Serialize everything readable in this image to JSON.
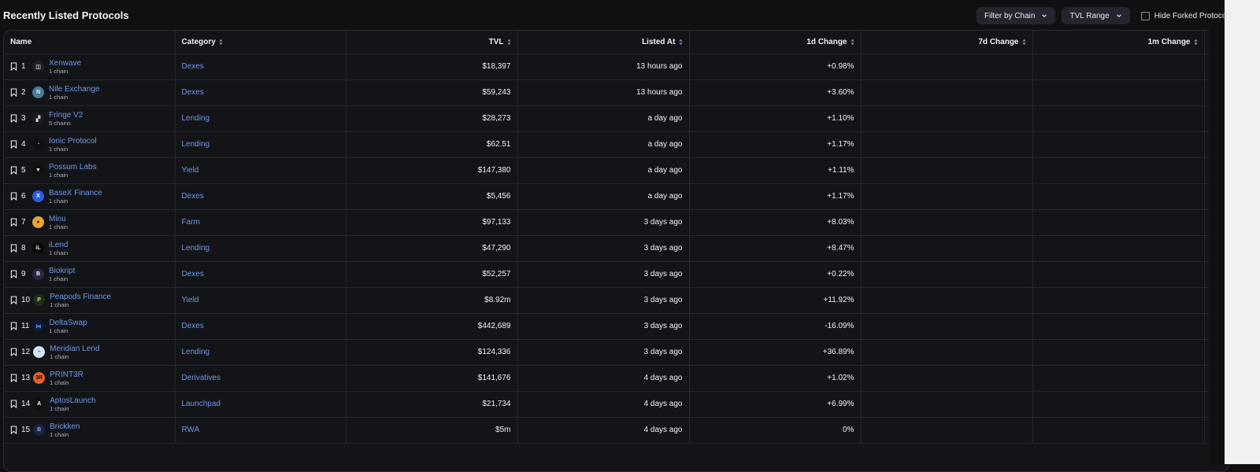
{
  "page": {
    "title": "Recently Listed Protocols"
  },
  "controls": {
    "filter_chain": "Filter by Chain",
    "tvl_range": "TVL Range",
    "hide_forked": "Hide Forked Protocols"
  },
  "columns": [
    "Name",
    "Category",
    "TVL",
    "Listed At",
    "1d Change",
    "7d Change",
    "1m Change"
  ],
  "rows": [
    {
      "rank": "1",
      "name": "Xenwave",
      "chains": "1 chain",
      "category": "Dexes",
      "tvl": "$18,397",
      "listed": "13 hours ago",
      "d1": "+0.98%",
      "d7": "",
      "m1": "",
      "logo_bg": "#1d1f24",
      "logo_fg": "#cfd2d8",
      "logo_text": "◫"
    },
    {
      "rank": "2",
      "name": "Nile Exchange",
      "chains": "1 chain",
      "category": "Dexes",
      "tvl": "$59,243",
      "listed": "13 hours ago",
      "d1": "+3.60%",
      "d7": "",
      "m1": "",
      "logo_bg": "#4a7b9a",
      "logo_fg": "#e6f0f7",
      "logo_text": "N"
    },
    {
      "rank": "3",
      "name": "Fringe V2",
      "chains": "5 chains",
      "category": "Lending",
      "tvl": "$28,273",
      "listed": "a day ago",
      "d1": "+1.10%",
      "d7": "",
      "m1": "",
      "logo_bg": "#1a1b1f",
      "logo_fg": "#cfd2d8",
      "logo_text": "▞"
    },
    {
      "rank": "4",
      "name": "Ionic Protocol",
      "chains": "1 chain",
      "category": "Lending",
      "tvl": "$62.51",
      "listed": "a day ago",
      "d1": "+1.17%",
      "d7": "",
      "m1": "",
      "logo_bg": "#0f1012",
      "logo_fg": "#6be37a",
      "logo_text": "◔"
    },
    {
      "rank": "5",
      "name": "Possum Labs",
      "chains": "1 chain",
      "category": "Yield",
      "tvl": "$147,380",
      "listed": "a day ago",
      "d1": "+1.11%",
      "d7": "",
      "m1": "",
      "logo_bg": "#0f1012",
      "logo_fg": "#e6e6e6",
      "logo_text": "▼"
    },
    {
      "rank": "6",
      "name": "BaseX Finance",
      "chains": "1 chain",
      "category": "Dexes",
      "tvl": "$5,456",
      "listed": "a day ago",
      "d1": "+1.17%",
      "d7": "",
      "m1": "",
      "logo_bg": "#2f5ce0",
      "logo_fg": "#ffffff",
      "logo_text": "X"
    },
    {
      "rank": "7",
      "name": "Minu",
      "chains": "1 chain",
      "category": "Farm",
      "tvl": "$97,133",
      "listed": "3 days ago",
      "d1": "+8.03%",
      "d7": "",
      "m1": "",
      "logo_bg": "#e8a53a",
      "logo_fg": "#4a2a0a",
      "logo_text": "●"
    },
    {
      "rank": "8",
      "name": "iLend",
      "chains": "1 chain",
      "category": "Lending",
      "tvl": "$47,290",
      "listed": "3 days ago",
      "d1": "+8.47%",
      "d7": "",
      "m1": "",
      "logo_bg": "#0a0a0a",
      "logo_fg": "#e6e6e6",
      "logo_text": "iL"
    },
    {
      "rank": "9",
      "name": "Biokript",
      "chains": "1 chain",
      "category": "Dexes",
      "tvl": "$52,257",
      "listed": "3 days ago",
      "d1": "+0.22%",
      "d7": "",
      "m1": "",
      "logo_bg": "#2a2540",
      "logo_fg": "#ffffff",
      "logo_text": "B"
    },
    {
      "rank": "10",
      "name": "Peapods Finance",
      "chains": "1 chain",
      "category": "Yield",
      "tvl": "$8.92m",
      "listed": "3 days ago",
      "d1": "+11.92%",
      "d7": "",
      "m1": "",
      "logo_bg": "#1f2a1a",
      "logo_fg": "#b8f04a",
      "logo_text": "P"
    },
    {
      "rank": "11",
      "name": "DeltaSwap",
      "chains": "1 chain",
      "category": "Dexes",
      "tvl": "$442,689",
      "listed": "3 days ago",
      "d1": "-16.09%",
      "d7": "",
      "m1": "",
      "logo_bg": "#0e1a33",
      "logo_fg": "#5a8cff",
      "logo_text": "⋈"
    },
    {
      "rank": "12",
      "name": "Meridian Lend",
      "chains": "1 chain",
      "category": "Lending",
      "tvl": "$124,336",
      "listed": "3 days ago",
      "d1": "+36.89%",
      "d7": "",
      "m1": "",
      "logo_bg": "#cfe6f2",
      "logo_fg": "#1d5f86",
      "logo_text": "~"
    },
    {
      "rank": "13",
      "name": "PRINT3R",
      "chains": "1 chain",
      "category": "Derivatives",
      "tvl": "$141,676",
      "listed": "4 days ago",
      "d1": "+1.02%",
      "d7": "",
      "m1": "",
      "logo_bg": "#e0622a",
      "logo_fg": "#1a0c05",
      "logo_text": "3R"
    },
    {
      "rank": "14",
      "name": "AptosLaunch",
      "chains": "1 chain",
      "category": "Launchpad",
      "tvl": "$21,734",
      "listed": "4 days ago",
      "d1": "+6.99%",
      "d7": "",
      "m1": "",
      "logo_bg": "#0f1012",
      "logo_fg": "#ffffff",
      "logo_text": "A"
    },
    {
      "rank": "15",
      "name": "Brickken",
      "chains": "1 chain",
      "category": "RWA",
      "tvl": "$5m",
      "listed": "4 days ago",
      "d1": "0%",
      "d7": "",
      "m1": "",
      "logo_bg": "#1b2340",
      "logo_fg": "#8fa8ff",
      "logo_text": "B"
    }
  ]
}
